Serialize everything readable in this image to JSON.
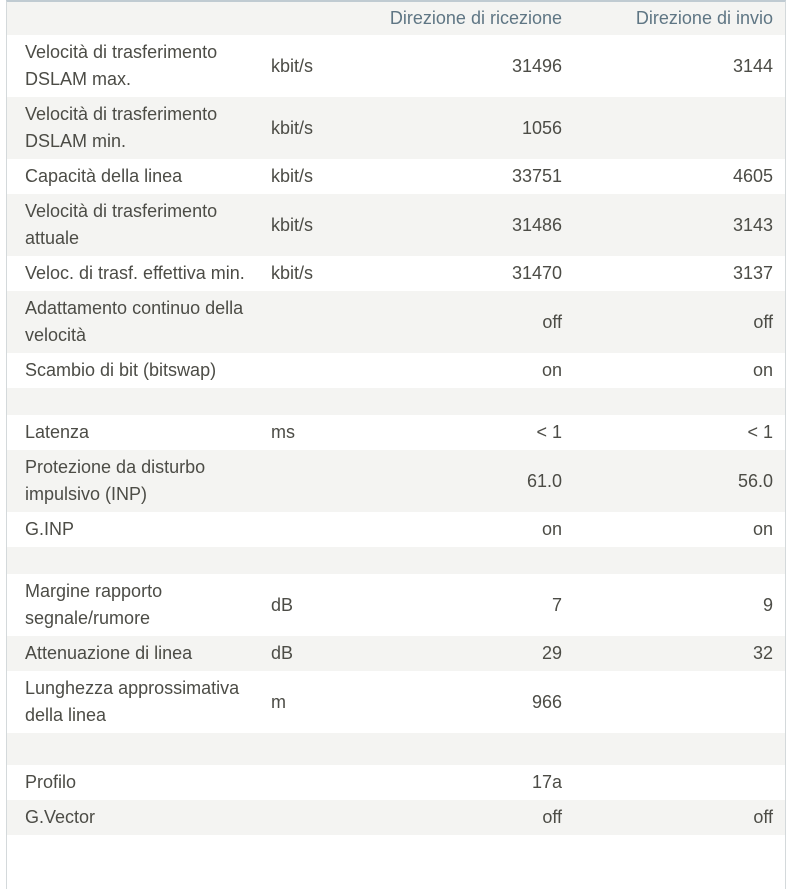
{
  "table": {
    "header": {
      "rx": "Direzione di ricezione",
      "tx": "Direzione di invio"
    },
    "rows": [
      {
        "label": "Velocità di trasferimento DSLAM max.",
        "unit": "kbit/s",
        "rx": "31496",
        "tx": "3144"
      },
      {
        "label": "Velocità di trasferimento DSLAM min.",
        "unit": "kbit/s",
        "rx": "1056",
        "tx": ""
      },
      {
        "label": "Capacità della linea",
        "unit": "kbit/s",
        "rx": "33751",
        "tx": "4605"
      },
      {
        "label": "Velocità di trasferimento attuale",
        "unit": "kbit/s",
        "rx": "31486",
        "tx": "3143"
      },
      {
        "label": "Veloc. di trasf. effettiva min.",
        "unit": "kbit/s",
        "rx": "31470",
        "tx": "3137"
      },
      {
        "label": "Adattamento continuo della velocità",
        "unit": "",
        "rx": "off",
        "tx": "off"
      },
      {
        "label": "Scambio di bit (bitswap)",
        "unit": "",
        "rx": "on",
        "tx": "on"
      },
      {
        "label": "",
        "unit": "",
        "rx": "",
        "tx": ""
      },
      {
        "label": "Latenza",
        "unit": "ms",
        "rx": "< 1",
        "tx": "< 1"
      },
      {
        "label": "Protezione da disturbo impulsivo (INP)",
        "unit": "",
        "rx": "61.0",
        "tx": "56.0"
      },
      {
        "label": "G.INP",
        "unit": "",
        "rx": "on",
        "tx": "on"
      },
      {
        "label": "",
        "unit": "",
        "rx": "",
        "tx": ""
      },
      {
        "label": "Margine rapporto segnale/rumore",
        "unit": "dB",
        "rx": "7",
        "tx": "9"
      },
      {
        "label": "Attenuazione di linea",
        "unit": "dB",
        "rx": "29",
        "tx": "32"
      },
      {
        "label": "Lunghezza approssimativa della linea",
        "unit": "m",
        "rx": "966",
        "tx": ""
      },
      {
        "label": "",
        "unit": "",
        "rx": "",
        "tx": ""
      },
      {
        "label": "Profilo",
        "unit": "",
        "rx": "17a",
        "tx": ""
      },
      {
        "label": "G.Vector",
        "unit": "",
        "rx": "off",
        "tx": "off"
      },
      {
        "label": "",
        "unit": "",
        "rx": "",
        "tx": ""
      }
    ]
  },
  "colors": {
    "top_border": "#c0cbd2",
    "side_border": "#d4d9db",
    "zebra_row": "#f4f4f2",
    "body_text": "#4c4c46",
    "header_text": "#5f7684"
  }
}
